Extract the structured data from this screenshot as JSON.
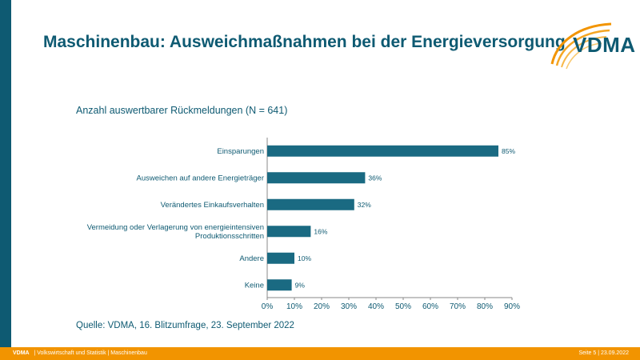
{
  "slide": {
    "title": "Maschinenbau: Ausweichmaßnahmen bei der Energieversorgung",
    "logo_text": "VDMA",
    "source": "Quelle: VDMA, 16. Blitzumfrage, 23. September 2022"
  },
  "footer": {
    "brand": "VDMA",
    "department": "| Volkswirtschaft und Statistik | Maschinenbau",
    "page_info": "Seite 5 | 23.09.2022"
  },
  "colors": {
    "primary": "#0e5a72",
    "accent": "#f29400",
    "bar": "#1a6a82"
  },
  "chart_data": {
    "type": "bar",
    "orientation": "horizontal",
    "subtitle": "Anzahl auswertbarer Rückmeldungen (N = 641)",
    "categories": [
      [
        "Einsparungen"
      ],
      [
        "Ausweichen auf andere Energieträger"
      ],
      [
        "Verändertes Einkaufsverhalten"
      ],
      [
        "Vermeidung oder Verlagerung von energieintensiven",
        "Produktionsschritten"
      ],
      [
        "Andere"
      ],
      [
        "Keine"
      ]
    ],
    "values": [
      85,
      36,
      32,
      16,
      10,
      9
    ],
    "value_labels": [
      "85%",
      "36%",
      "32%",
      "16%",
      "10%",
      "9%"
    ],
    "x_ticks": [
      "0%",
      "10%",
      "20%",
      "30%",
      "40%",
      "50%",
      "60%",
      "70%",
      "80%",
      "90%"
    ],
    "xlim": [
      0,
      90
    ],
    "grid": false
  }
}
